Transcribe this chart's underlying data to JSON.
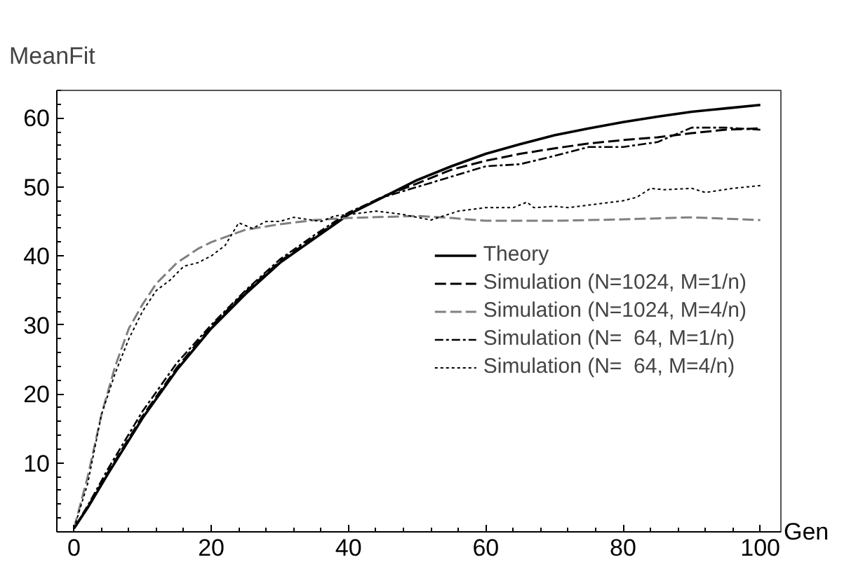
{
  "chart_data": {
    "type": "line",
    "xlabel": "Gen",
    "ylabel": "MeanFit",
    "xlim": [
      -2.5,
      103
    ],
    "ylim": [
      0,
      64
    ],
    "xticks": [
      0,
      20,
      40,
      60,
      80,
      100
    ],
    "yticks": [
      10,
      20,
      30,
      40,
      50,
      60
    ],
    "grid": false,
    "legend": "right",
    "series": [
      {
        "name": "Theory",
        "color": "#000000",
        "line_style": "solid",
        "x": [
          0,
          2,
          5,
          10,
          15,
          20,
          25,
          30,
          35,
          40,
          45,
          50,
          55,
          60,
          65,
          70,
          75,
          80,
          85,
          90,
          95,
          100
        ],
        "values": [
          0.5,
          3.5,
          8.5,
          16.5,
          23.5,
          29.5,
          34.5,
          39,
          42.5,
          46,
          48.5,
          51,
          53,
          54.8,
          56.2,
          57.5,
          58.5,
          59.4,
          60.2,
          60.9,
          61.4,
          61.9
        ]
      },
      {
        "name": "Simulation (N=1024, M=1/n)",
        "color": "#000000",
        "line_style": "dashed",
        "x": [
          0,
          2,
          5,
          10,
          15,
          20,
          25,
          30,
          35,
          40,
          45,
          50,
          55,
          60,
          65,
          70,
          75,
          80,
          85,
          90,
          95,
          100
        ],
        "values": [
          0.5,
          3.6,
          8.7,
          16.8,
          23.8,
          29.8,
          34.8,
          39.2,
          42.7,
          46.1,
          48.6,
          50.5,
          52.5,
          53.8,
          54.8,
          55.6,
          56.3,
          56.8,
          57.2,
          57.8,
          58.3,
          58.5
        ]
      },
      {
        "name": "Simulation (N=1024, M=4/n)",
        "color": "#808080",
        "line_style": "dashed",
        "x": [
          0,
          2,
          4,
          6,
          8,
          10,
          12,
          15,
          18,
          20,
          25,
          30,
          35,
          40,
          50,
          55,
          60,
          70,
          80,
          90,
          95,
          100
        ],
        "values": [
          0.5,
          8,
          17,
          24,
          29.5,
          33,
          36,
          39,
          41,
          42,
          43.8,
          44.6,
          45.2,
          45.5,
          45.8,
          45.5,
          45.1,
          45.1,
          45.3,
          45.6,
          45.4,
          45.2
        ]
      },
      {
        "name": "Simulation (N=  64, M=1/n)",
        "color": "#000000",
        "line_style": "dashdot",
        "x": [
          0,
          2,
          5,
          10,
          15,
          20,
          25,
          30,
          35,
          40,
          45,
          50,
          55,
          60,
          65,
          70,
          75,
          80,
          85,
          90,
          95,
          100
        ],
        "values": [
          0.5,
          3.8,
          9.2,
          17.5,
          24.5,
          30,
          35,
          39.5,
          43,
          46.3,
          48.5,
          50,
          51.5,
          53,
          53.3,
          54.5,
          55.8,
          55.8,
          56.5,
          58.6,
          58.6,
          58.3
        ]
      },
      {
        "name": "Simulation (N=  64, M=4/n)",
        "color": "#000000",
        "line_style": "dotted",
        "x": [
          0,
          2,
          4,
          6,
          8,
          10,
          12,
          14,
          16,
          18,
          20,
          22,
          24,
          26,
          28,
          30,
          32,
          34,
          36,
          38,
          40,
          44,
          48,
          52,
          56,
          60,
          64,
          66,
          67,
          70,
          72,
          76,
          80,
          82,
          84,
          86,
          90,
          92,
          96,
          100
        ],
        "values": [
          0.5,
          7,
          17,
          23,
          28,
          32,
          35,
          36.5,
          38.5,
          39,
          40,
          41.5,
          44.8,
          44,
          45,
          45,
          45.6,
          45.3,
          45,
          45.8,
          46,
          46.5,
          46,
          45.2,
          46.5,
          47,
          47,
          47.8,
          47,
          47.2,
          47,
          47.5,
          48,
          48.5,
          49.8,
          49.6,
          49.8,
          49.2,
          49.8,
          50.2
        ]
      }
    ]
  }
}
